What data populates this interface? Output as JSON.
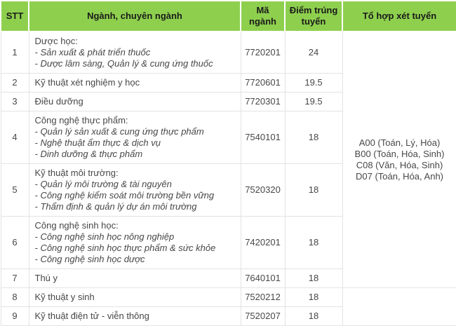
{
  "table": {
    "headers": [
      "STT",
      "Ngành, chuyên ngành",
      "Mã ngành",
      "Điểm trúng tuyển",
      "Tổ hợp xét tuyển"
    ],
    "rows": [
      {
        "stt": "1",
        "major_title": "Dược học:",
        "specializations": [
          "- Sản xuất & phát triển thuốc",
          "- Dược lâm sàng, Quản lý & cung ứng thuốc"
        ],
        "code": "7720201",
        "score": "24"
      },
      {
        "stt": "2",
        "major_title": "Kỹ thuật xét nghiệm y học",
        "specializations": [],
        "code": "7720601",
        "score": "19.5"
      },
      {
        "stt": "3",
        "major_title": "Điều dưỡng",
        "specializations": [],
        "code": "7720301",
        "score": "19.5"
      },
      {
        "stt": "4",
        "major_title": "Công nghệ thực phẩm:",
        "specializations": [
          "- Quản lý sản xuất & cung ứng thực phẩm",
          "- Nghệ thuật ẩm thực & dịch vụ",
          "- Dinh dưỡng & thực phẩm"
        ],
        "code": "7540101",
        "score": "18"
      },
      {
        "stt": "5",
        "major_title": "Kỹ thuật môi trường:",
        "specializations": [
          "- Quản lý môi trường & tài nguyên",
          "- Công nghệ kiểm soát môi trường bền vững",
          "- Thẩm định & quản lý dự án môi trường"
        ],
        "code": "7520320",
        "score": "18"
      },
      {
        "stt": "6",
        "major_title": "Công nghệ sinh học:",
        "specializations": [
          "- Công nghệ sinh học nông nghiệp",
          "- Công nghệ sinh học thực phẩm & sức khỏe",
          "- Công nghệ sinh học dược"
        ],
        "code": "7420201",
        "score": "18"
      },
      {
        "stt": "7",
        "major_title": "Thú y",
        "specializations": [],
        "code": "7640101",
        "score": "18"
      },
      {
        "stt": "8",
        "major_title": "Kỹ thuật y sinh",
        "specializations": [],
        "code": "7520212",
        "score": "18"
      },
      {
        "stt": "9",
        "major_title": "Kỹ thuật điện tử - viễn thông",
        "specializations": [],
        "code": "7520207",
        "score": "18"
      }
    ],
    "combination_lines": [
      "A00 (Toán, Lý, Hóa)",
      "B00 (Toán, Hóa, Sinh)",
      "C08 (Văn, Hóa, Sinh)",
      "D07 (Toán, Hóa, Anh)"
    ],
    "combination_rowspan": 7
  },
  "colors": {
    "header_bg": "#8ED04E",
    "header_text": "#1A1A1A",
    "body_text": "#474747",
    "border": "#E3E3E3"
  }
}
